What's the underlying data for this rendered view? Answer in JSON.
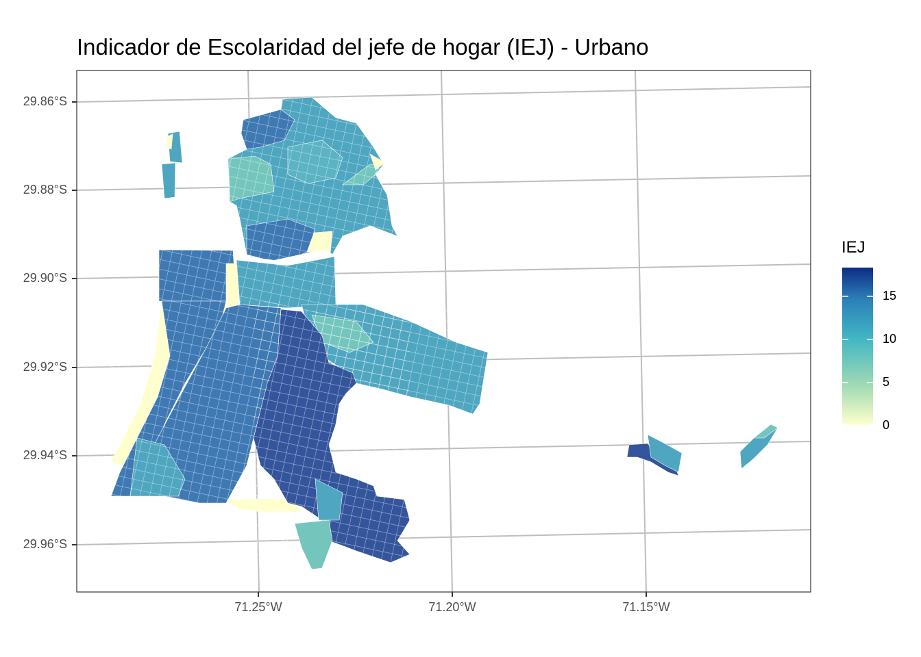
{
  "title": "Indicador de Escolaridad del jefe de hogar (IEJ) - Urbano",
  "axes": {
    "y_ticks": [
      "29.86°S",
      "29.88°S",
      "29.90°S",
      "29.92°S",
      "29.94°S",
      "29.96°S"
    ],
    "x_ticks": [
      "71.25°W",
      "71.20°W",
      "71.15°W"
    ]
  },
  "legend": {
    "title": "IEJ",
    "labels": [
      "15",
      "10",
      "5",
      "0"
    ],
    "color_low": "#ffffcc",
    "color_mid": "#41b6c4",
    "color_high": "#0c2c84"
  },
  "colors": {
    "panel_border": "#333333",
    "grid": "#bebebe",
    "region_dark": "#34559c",
    "region_mid": "#3f79b3",
    "region_teal": "#4fa6c0",
    "region_light": "#74c6bd",
    "region_pale": "#ffffcc"
  }
}
